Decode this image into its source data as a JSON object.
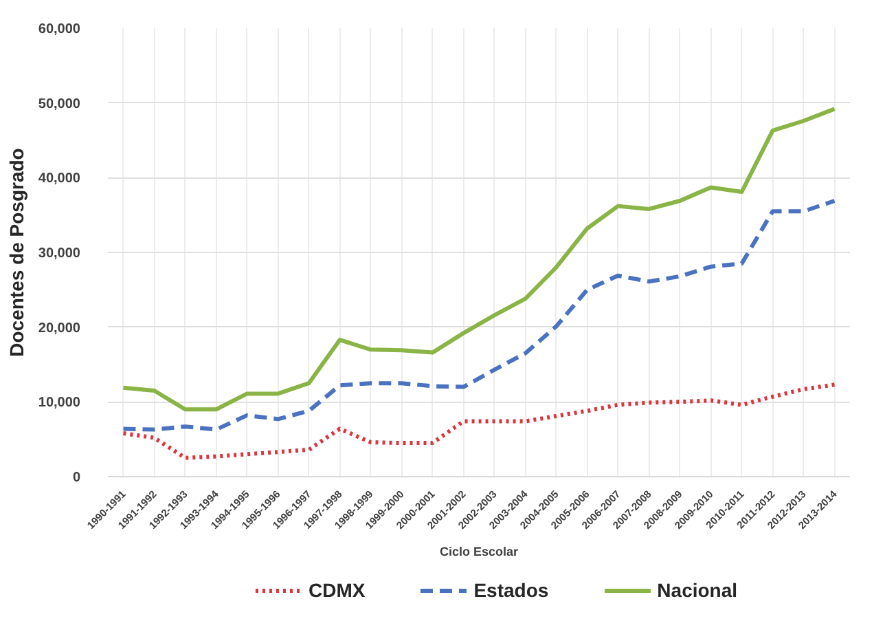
{
  "chart_data": {
    "type": "line",
    "xlabel": "Ciclo Escolar",
    "ylabel": "Docentes de Posgrado",
    "categories": [
      "1990-1991",
      "1991-1992",
      "1992-1993",
      "1993-1994",
      "1994-1995",
      "1995-1996",
      "1996-1997",
      "1997-1998",
      "1998-1999",
      "1999-2000",
      "2000-2001",
      "2001-2002",
      "2002-2003",
      "2003-2004",
      "2004-2005",
      "2005-2006",
      "2006-2007",
      "2007-2008",
      "2008-2009",
      "2009-2010",
      "2010-2011",
      "2011-2012",
      "2012-2013",
      "2013-2014"
    ],
    "series": [
      {
        "name": "CDMX",
        "color": "#d9363e",
        "line_style": "dotted",
        "values": [
          5800,
          5200,
          2500,
          2700,
          3000,
          3300,
          3600,
          6400,
          4600,
          4500,
          4500,
          7400,
          7400,
          7400,
          8100,
          8800,
          9600,
          9900,
          10000,
          10200,
          9600,
          10700,
          11700,
          12300
        ]
      },
      {
        "name": "Estados",
        "color": "#4a72c0",
        "line_style": "dashed",
        "values": [
          6400,
          6300,
          6700,
          6300,
          8200,
          7700,
          8800,
          12200,
          12500,
          12500,
          12100,
          12000,
          14300,
          16500,
          20100,
          25000,
          26900,
          26100,
          26800,
          28100,
          28500,
          35500,
          35500,
          36900
        ]
      },
      {
        "name": "Nacional",
        "color": "#8ab446",
        "line_style": "solid",
        "values": [
          11900,
          11500,
          9000,
          9000,
          11100,
          11100,
          12500,
          18300,
          17000,
          16900,
          16600,
          19200,
          21600,
          23800,
          28000,
          33200,
          36200,
          35800,
          36900,
          38700,
          38100,
          46300,
          47600,
          49200
        ]
      }
    ],
    "ylim": [
      0,
      60000
    ],
    "yticks": [
      {
        "value": 0,
        "label": "0"
      },
      {
        "value": 10000,
        "label": "10,000"
      },
      {
        "value": 20000,
        "label": "20,000"
      },
      {
        "value": 30000,
        "label": "30,000"
      },
      {
        "value": 40000,
        "label": "40,000"
      },
      {
        "value": 50000,
        "label": "50,000"
      },
      {
        "value": 60000,
        "label": "60,000"
      }
    ],
    "grid": true,
    "legend": "bottom"
  }
}
